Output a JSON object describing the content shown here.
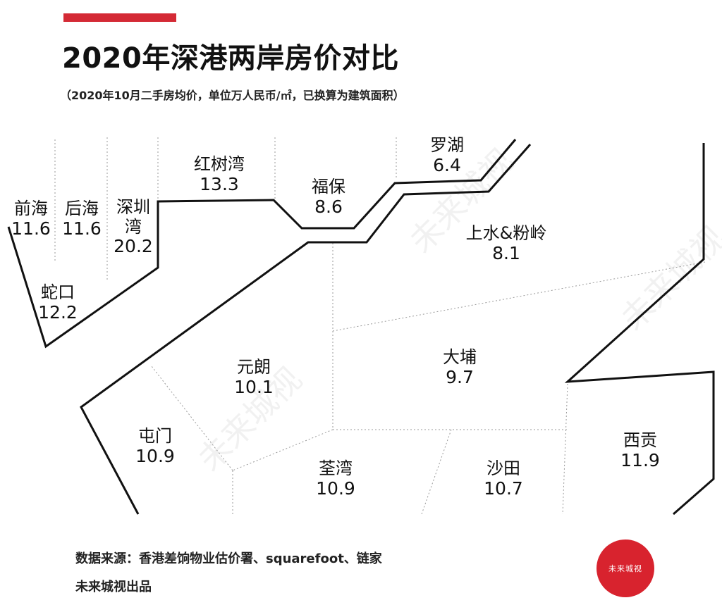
{
  "header": {
    "title": "2020年深港两岸房价对比",
    "subtitle": "（2020年10月二手房均价，单位万人民币/㎡，已换算为建筑面积）"
  },
  "regions": [
    {
      "name": "前海",
      "value": "11.6"
    },
    {
      "name": "后海",
      "value": "11.6"
    },
    {
      "name": "深圳湾",
      "value": "20.2"
    },
    {
      "name": "红树湾",
      "value": "13.3"
    },
    {
      "name": "福保",
      "value": "8.6"
    },
    {
      "name": "罗湖",
      "value": "6.4"
    },
    {
      "name": "蛇口",
      "value": "12.2"
    },
    {
      "name": "上水&粉岭",
      "value": "8.1"
    },
    {
      "name": "元朗",
      "value": "10.1"
    },
    {
      "name": "大埔",
      "value": "9.7"
    },
    {
      "name": "屯门",
      "value": "10.9"
    },
    {
      "name": "荃湾",
      "value": "10.9"
    },
    {
      "name": "沙田",
      "value": "10.7"
    },
    {
      "name": "西贡",
      "value": "11.9"
    }
  ],
  "footer": {
    "source": "数据来源：香港差饷物业估价署、squarefoot、链家",
    "credit": "未来城视出品"
  },
  "logo": {
    "text": "未来城视"
  },
  "watermark": {
    "text": "未来城视"
  },
  "colors": {
    "accent": "#d42a35",
    "logo": "#d8232e",
    "line": "#111111",
    "divider": "#9a9a9a"
  }
}
